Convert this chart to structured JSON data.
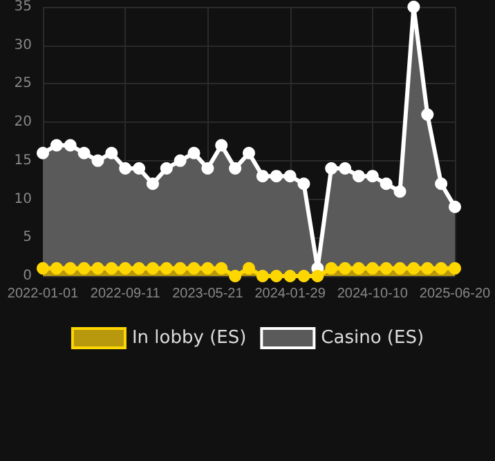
{
  "chart_data": {
    "type": "area",
    "categories": [
      "2022-01-01",
      null,
      null,
      null,
      null,
      null,
      "2022-09-11",
      null,
      null,
      null,
      null,
      null,
      "2023-05-21",
      null,
      null,
      null,
      null,
      null,
      "2024-01-29",
      null,
      null,
      null,
      null,
      null,
      "2024-10-10",
      null,
      null,
      null,
      null,
      null,
      "2025-06-20"
    ],
    "series": [
      {
        "name": "In lobby (ES)",
        "color": "#ffd700",
        "values": [
          1,
          1,
          1,
          1,
          1,
          1,
          1,
          1,
          1,
          1,
          1,
          1,
          1,
          1,
          0,
          1,
          0,
          0,
          0,
          0,
          0,
          1,
          1,
          1,
          1,
          1,
          1,
          1,
          1,
          1,
          1
        ]
      },
      {
        "name": "Casino (ES)",
        "color": "#ffffff",
        "values": [
          16,
          17,
          17,
          16,
          15,
          16,
          14,
          14,
          12,
          14,
          15,
          16,
          14,
          17,
          14,
          16,
          13,
          13,
          13,
          12,
          1,
          14,
          14,
          13,
          13,
          12,
          11,
          35,
          21,
          12,
          9
        ]
      }
    ],
    "ylim": [
      0,
      35
    ],
    "yticks": [
      0,
      5,
      10,
      15,
      20,
      25,
      30,
      35
    ],
    "grid": true,
    "legend": "bottom",
    "marker": "circle"
  }
}
